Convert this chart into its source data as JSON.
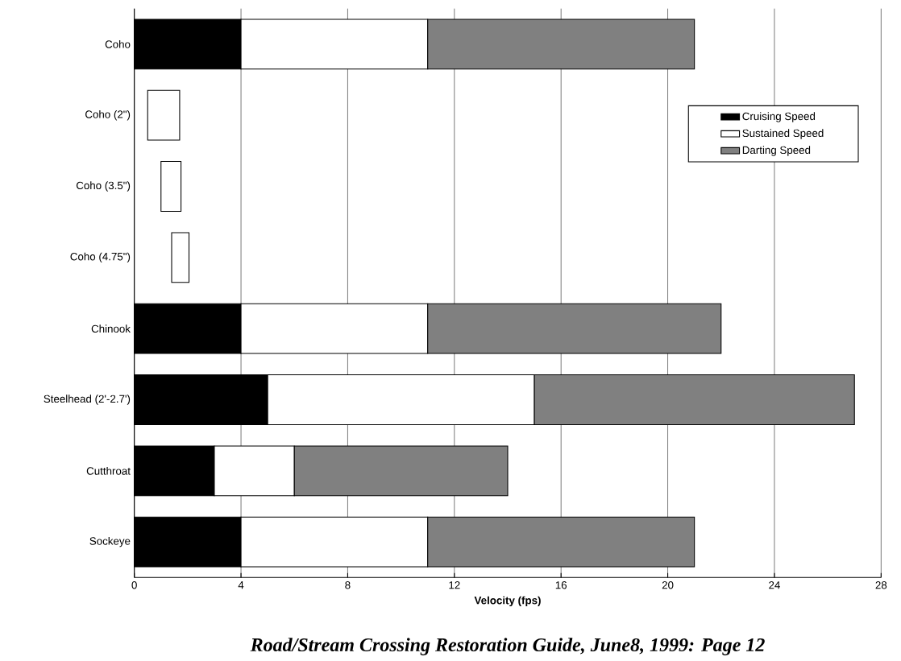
{
  "chart_data": {
    "type": "bar",
    "orientation": "horizontal",
    "stacked": true,
    "xlabel": "Velocity (fps)",
    "categories": [
      "Coho",
      "Coho (2\")",
      "Coho (3.5\")",
      "Coho (4.75\")",
      "Chinook",
      "Steelhead (2'-2.7')",
      "Cutthroat",
      "Sockeye"
    ],
    "series": [
      {
        "name": "Cruising Speed",
        "color": "#000000",
        "values": [
          4,
          null,
          null,
          null,
          4,
          5,
          3,
          4
        ]
      },
      {
        "name": "Sustained Speed",
        "color": "#ffffff",
        "base": [
          null,
          0.5,
          1.0,
          1.4,
          null,
          null,
          null,
          null
        ],
        "values": [
          7,
          1.2,
          0.75,
          0.65,
          7,
          10,
          3,
          7
        ]
      },
      {
        "name": "Darting Speed",
        "color": "#808080",
        "values": [
          10,
          null,
          null,
          null,
          11,
          12,
          8,
          10
        ]
      }
    ],
    "xlim": [
      0,
      28
    ],
    "xticks": [
      0,
      4,
      8,
      12,
      16,
      20,
      24,
      28
    ],
    "grid": "x",
    "legend": "top right",
    "annotations": [
      "Road/Stream Crossing Restoration Guide, June8, 1999:  Page 12"
    ]
  }
}
